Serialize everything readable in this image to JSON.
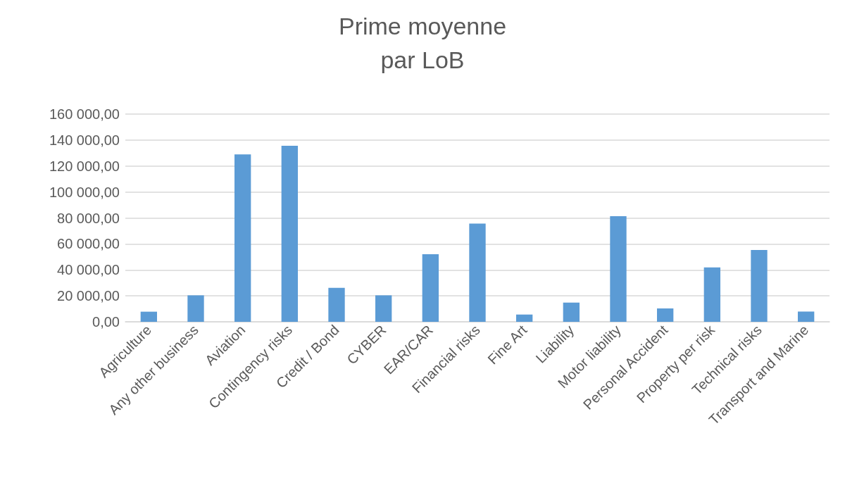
{
  "chart_data": {
    "type": "bar",
    "title": "Prime moyenne\npar LoB",
    "categories": [
      "Agriculture",
      "Any other business",
      "Aviation",
      "Contingency risks",
      "Credit / Bond",
      "CYBER",
      "EAR/CAR",
      "Financial risks",
      "Fine Art",
      "Liability",
      "Motor liability",
      "Personal Accident",
      "Property per risk",
      "Technical risks",
      "Transport and Marine"
    ],
    "values": [
      7800,
      20400,
      128900,
      135600,
      26200,
      20400,
      52100,
      75700,
      5600,
      14800,
      81300,
      10300,
      41900,
      55300,
      7900
    ],
    "color": "#5b9bd5",
    "ylim": [
      0,
      160000
    ],
    "yticks": [
      {
        "value": 0,
        "label": "0,00"
      },
      {
        "value": 20000,
        "label": "20 000,00"
      },
      {
        "value": 40000,
        "label": "40 000,00"
      },
      {
        "value": 60000,
        "label": "60 000,00"
      },
      {
        "value": 80000,
        "label": "80 000,00"
      },
      {
        "value": 100000,
        "label": "100 000,00"
      },
      {
        "value": 120000,
        "label": "120 000,00"
      },
      {
        "value": 140000,
        "label": "140 000,00"
      },
      {
        "value": 160000,
        "label": "160 000,00"
      }
    ],
    "grid": "y"
  }
}
